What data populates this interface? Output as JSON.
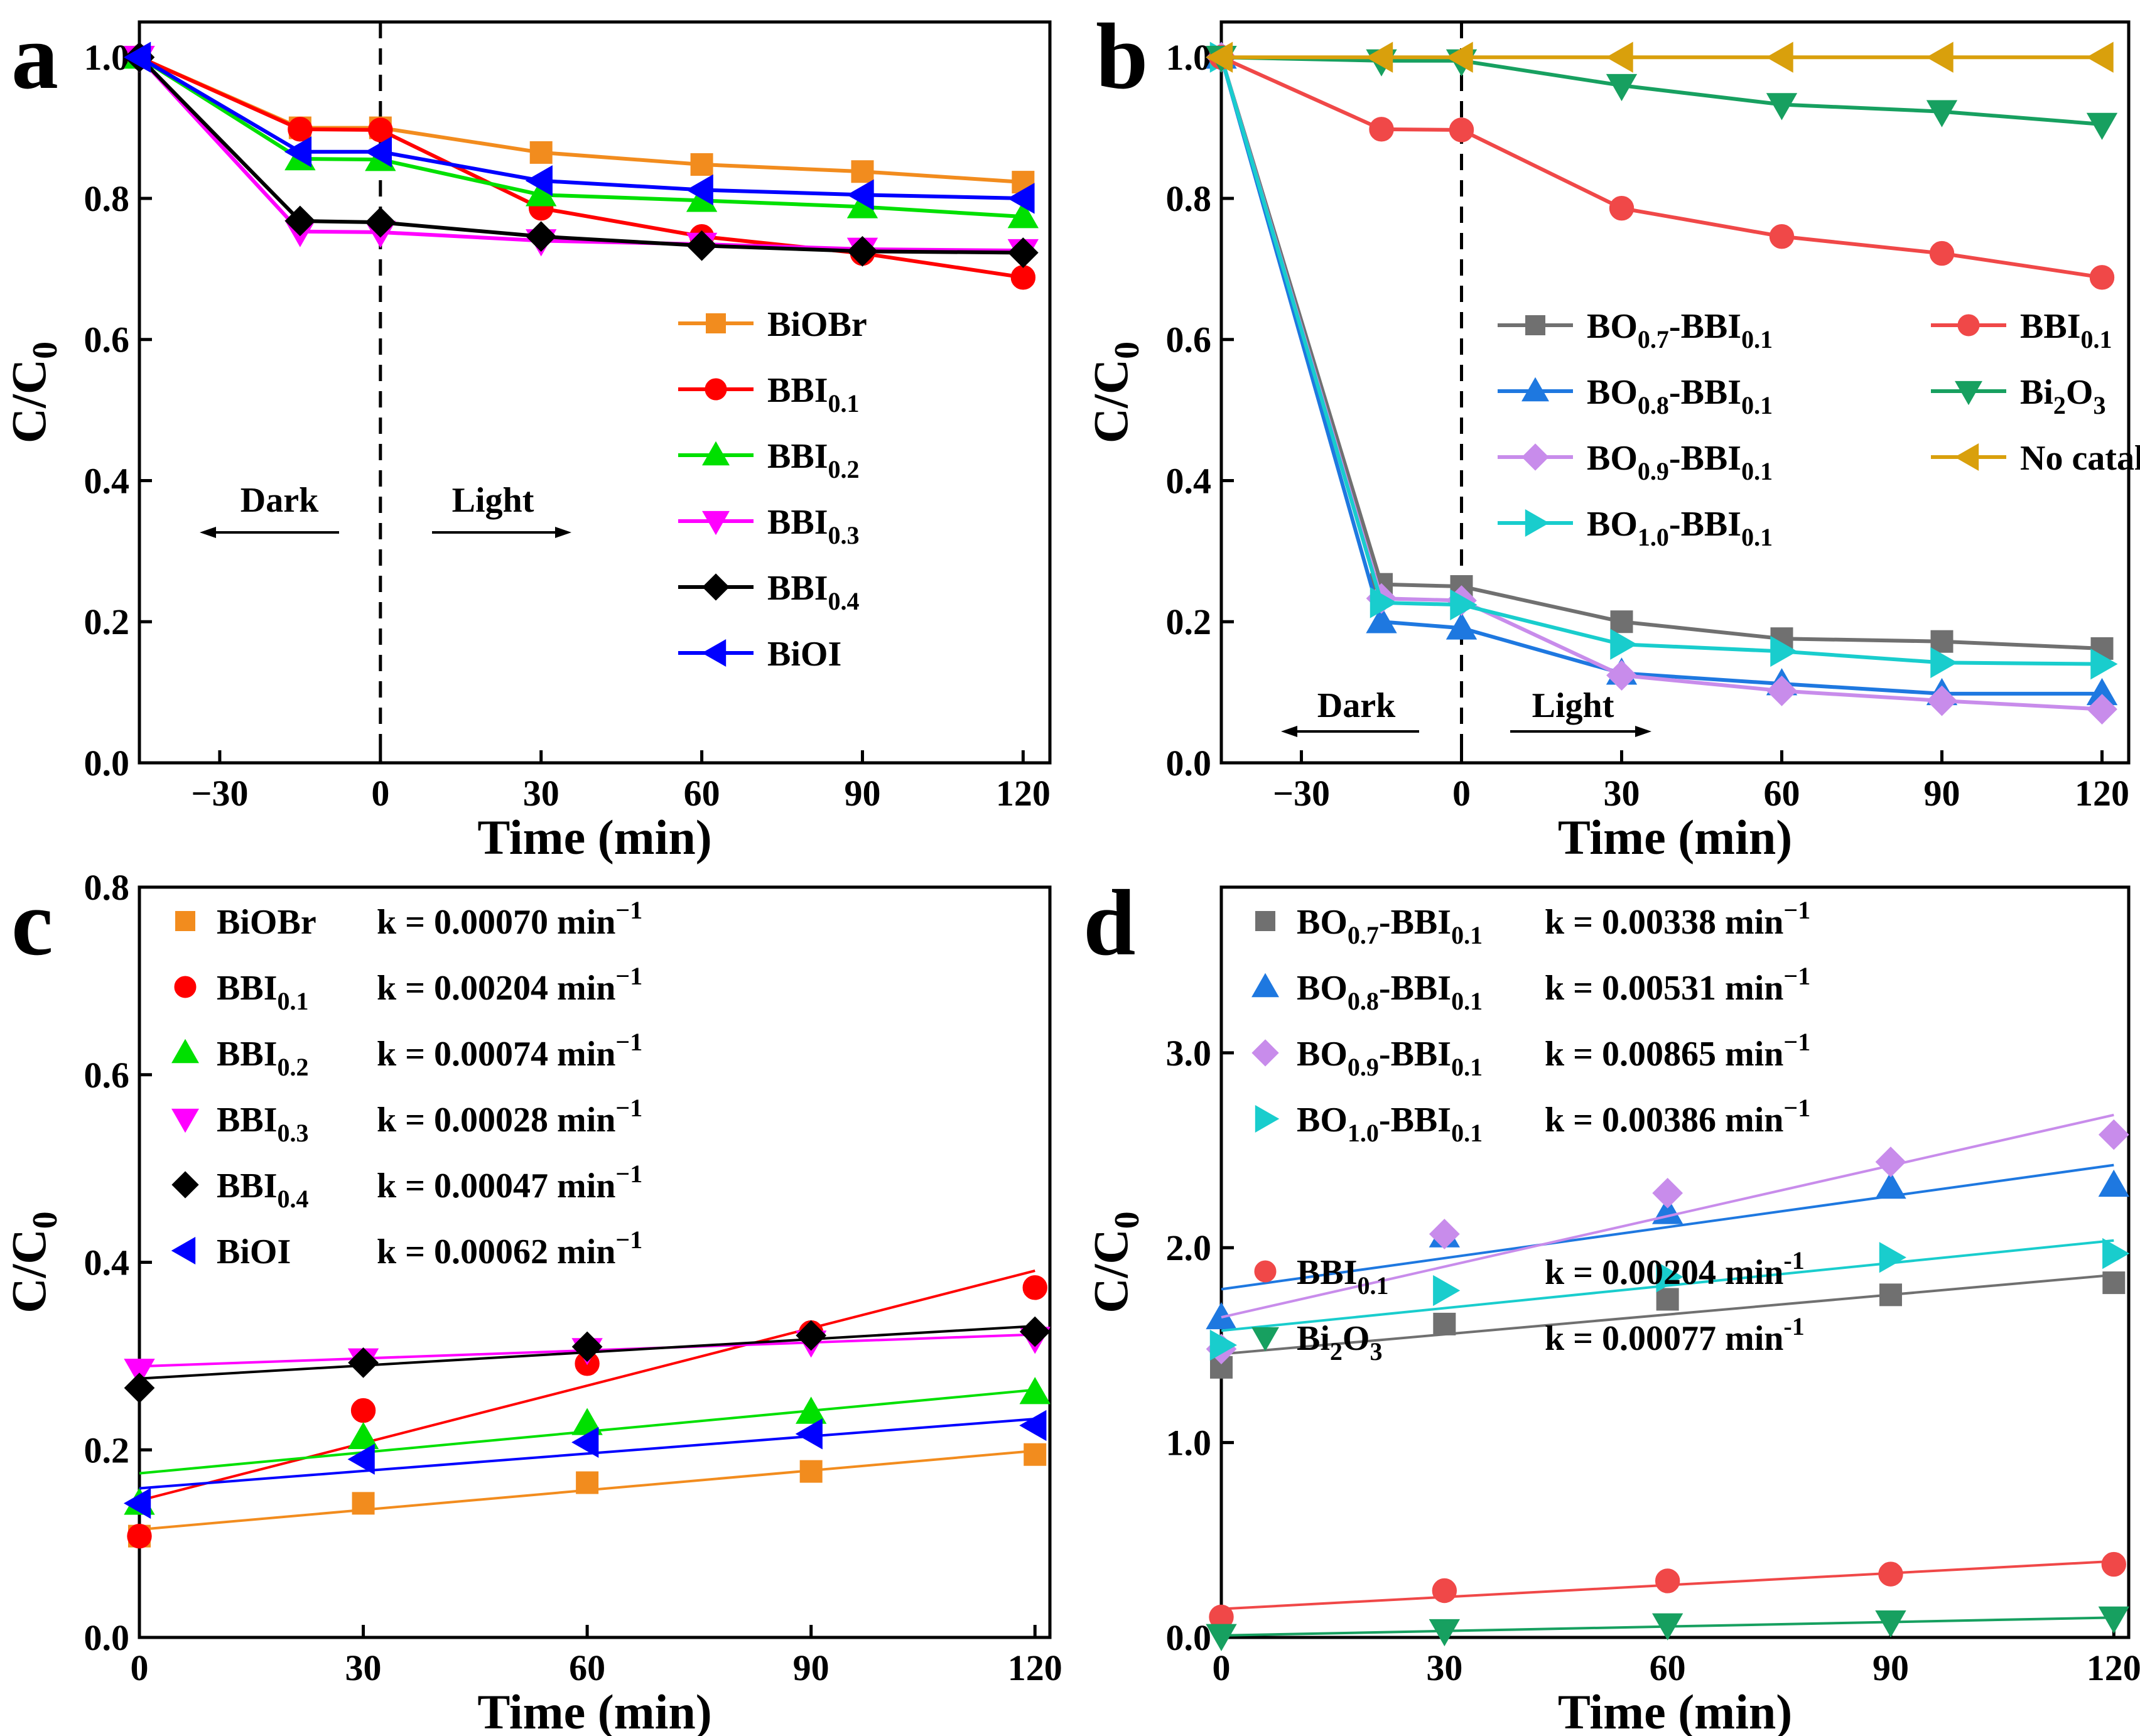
{
  "chart_data": [
    {
      "panel": "a",
      "type": "line",
      "title": "",
      "xlabel": "Time (min)",
      "ylabel": "C/C0",
      "xlim": [
        -45,
        125
      ],
      "ylim": [
        0,
        1.05
      ],
      "xticks": [
        -30,
        0,
        30,
        60,
        90,
        120
      ],
      "yticks": [
        0.0,
        0.2,
        0.4,
        0.6,
        0.8,
        1.0
      ],
      "legend_position": "center-right",
      "annotations": {
        "dark": "Dark",
        "light": "Light"
      },
      "x": [
        -45,
        -15,
        0,
        30,
        60,
        90,
        120
      ],
      "series": [
        {
          "name": "BiOBr",
          "base": "BiOBr",
          "sub": "",
          "color": "#F28C1E",
          "marker": "square",
          "values": [
            1.0,
            0.9,
            0.9,
            0.865,
            0.848,
            0.838,
            0.823
          ]
        },
        {
          "name": "BBI0.1",
          "base": "BBI",
          "sub": "0.1",
          "color": "#FF0000",
          "marker": "circle",
          "values": [
            1.0,
            0.898,
            0.897,
            0.786,
            0.746,
            0.722,
            0.688
          ]
        },
        {
          "name": "BBI0.2",
          "base": "BBI",
          "sub": "0.2",
          "color": "#00E000",
          "marker": "triangle-up",
          "values": [
            1.0,
            0.856,
            0.855,
            0.805,
            0.797,
            0.788,
            0.774
          ]
        },
        {
          "name": "BBI0.3",
          "base": "BBI",
          "sub": "0.3",
          "color": "#FF00FF",
          "marker": "triangle-down",
          "values": [
            1.0,
            0.753,
            0.752,
            0.74,
            0.735,
            0.728,
            0.726
          ]
        },
        {
          "name": "BBI0.4",
          "base": "BBI",
          "sub": "0.4",
          "color": "#000000",
          "marker": "diamond",
          "values": [
            1.0,
            0.768,
            0.766,
            0.746,
            0.733,
            0.725,
            0.723
          ]
        },
        {
          "name": "BiOI",
          "base": "BiOI",
          "sub": "",
          "color": "#0000FF",
          "marker": "triangle-left",
          "values": [
            1.0,
            0.866,
            0.866,
            0.825,
            0.812,
            0.805,
            0.8
          ]
        }
      ]
    },
    {
      "panel": "b",
      "type": "line",
      "title": "",
      "xlabel": "Time (min)",
      "ylabel": "C/C0",
      "xlim": [
        -45,
        125
      ],
      "ylim": [
        0,
        1.05
      ],
      "xticks": [
        -30,
        0,
        30,
        60,
        90,
        120
      ],
      "yticks": [
        0.0,
        0.2,
        0.4,
        0.6,
        0.8,
        1.0
      ],
      "legend_position": "center-right",
      "annotations": {
        "dark": "Dark",
        "light": "Light"
      },
      "x": [
        -45,
        -15,
        0,
        30,
        60,
        90,
        120
      ],
      "series": [
        {
          "name": "BO0.7-BBI0.1",
          "base": "BO",
          "sub": "0.7",
          "mid": "-BBI",
          "sub2": "0.1",
          "color": "#707070",
          "marker": "square",
          "values": [
            1.0,
            0.253,
            0.25,
            0.2,
            0.176,
            0.172,
            0.162
          ]
        },
        {
          "name": "BO0.8-BBI0.1",
          "base": "BO",
          "sub": "0.8",
          "mid": "-BBI",
          "sub2": "0.1",
          "color": "#1E78E0",
          "marker": "triangle-up",
          "values": [
            1.0,
            0.2,
            0.191,
            0.127,
            0.112,
            0.098,
            0.098
          ]
        },
        {
          "name": "BO0.9-BBI0.1",
          "base": "BO",
          "sub": "0.9",
          "mid": "-BBI",
          "sub2": "0.1",
          "color": "#C88CEB",
          "marker": "diamond",
          "values": [
            1.0,
            0.233,
            0.23,
            0.124,
            0.102,
            0.088,
            0.076
          ]
        },
        {
          "name": "BO1.0-BBI0.1",
          "base": "BO",
          "sub": "1.0",
          "mid": "-BBI",
          "sub2": "0.1",
          "color": "#19CDCD",
          "marker": "triangle-right",
          "values": [
            1.0,
            0.227,
            0.224,
            0.168,
            0.158,
            0.142,
            0.14
          ]
        },
        {
          "name": "BBI0.1",
          "base": "BBI",
          "sub": "0.1",
          "color": "#F04848",
          "marker": "circle",
          "values": [
            1.0,
            0.898,
            0.897,
            0.786,
            0.746,
            0.722,
            0.688
          ]
        },
        {
          "name": "Bi2O3",
          "base": "Bi",
          "sub": "2",
          "mid": "O",
          "sub2": "3",
          "color": "#17A060",
          "marker": "triangle-down",
          "values": [
            1.0,
            0.995,
            0.995,
            0.96,
            0.933,
            0.923,
            0.905
          ]
        },
        {
          "name": "No catalyst",
          "base": "No catalyst",
          "sub": "",
          "color": "#D9A00C",
          "marker": "triangle-left",
          "values": [
            1.0,
            1.0,
            1.0,
            1.0,
            1.0,
            1.0,
            1.0
          ]
        }
      ]
    },
    {
      "panel": "c",
      "type": "scatter",
      "title": "",
      "xlabel": "Time (min)",
      "ylabel": "C/C0",
      "xlim": [
        0,
        122
      ],
      "ylim": [
        0,
        0.8
      ],
      "xticks": [
        0,
        30,
        60,
        90,
        120
      ],
      "yticks": [
        0.0,
        0.2,
        0.4,
        0.6,
        0.8
      ],
      "legend_position": "top-left",
      "x": [
        0,
        30,
        60,
        90,
        120
      ],
      "series": [
        {
          "name": "BiOBr",
          "base": "BiOBr",
          "sub": "",
          "k": "k = 0.00070 min",
          "kexp": "−1",
          "color": "#F28C1E",
          "marker": "square",
          "values": [
            0.108,
            0.143,
            0.165,
            0.177,
            0.195
          ],
          "fit": [
            0.115,
            0.199
          ]
        },
        {
          "name": "BBI0.1",
          "base": "BBI",
          "sub": "0.1",
          "k": "k = 0.00204 min",
          "kexp": "−1",
          "color": "#FF0000",
          "marker": "circle",
          "values": [
            0.108,
            0.242,
            0.292,
            0.325,
            0.373
          ],
          "fit": [
            0.146,
            0.391
          ]
        },
        {
          "name": "BBI0.2",
          "base": "BBI",
          "sub": "0.2",
          "k": "k = 0.00074 min",
          "kexp": "−1",
          "color": "#00E000",
          "marker": "triangle-up",
          "values": [
            0.143,
            0.213,
            0.228,
            0.24,
            0.261
          ],
          "fit": [
            0.175,
            0.264
          ]
        },
        {
          "name": "BBI0.3",
          "base": "BBI",
          "sub": "0.3",
          "k": "k = 0.00028 min",
          "kexp": "−1",
          "color": "#FF00FF",
          "marker": "triangle-down",
          "values": [
            0.285,
            0.296,
            0.307,
            0.315,
            0.319
          ],
          "fit": [
            0.289,
            0.323
          ]
        },
        {
          "name": "BBI0.4",
          "base": "BBI",
          "sub": "0.4",
          "k": "k = 0.00047 min",
          "kexp": "−1",
          "color": "#000000",
          "marker": "diamond",
          "values": [
            0.266,
            0.293,
            0.31,
            0.322,
            0.326
          ],
          "fit": [
            0.276,
            0.332
          ]
        },
        {
          "name": "BiOI",
          "base": "BiOI",
          "sub": "",
          "k": "k = 0.00062 min",
          "kexp": "−1",
          "color": "#0000FF",
          "marker": "triangle-left",
          "values": [
            0.143,
            0.19,
            0.208,
            0.217,
            0.226
          ],
          "fit": [
            0.159,
            0.233
          ]
        }
      ]
    },
    {
      "panel": "d",
      "type": "scatter",
      "title": "",
      "xlabel": "Time (min)",
      "ylabel": "C/C0",
      "xlim": [
        0,
        122
      ],
      "ylim": [
        0,
        3.85
      ],
      "xticks": [
        0,
        30,
        60,
        90,
        120
      ],
      "yticks": [
        0.0,
        1.0,
        2.0,
        3.0
      ],
      "legend_position": "top-left",
      "x": [
        0,
        30,
        60,
        90,
        120
      ],
      "series": [
        {
          "name": "BO0.7-BBI0.1",
          "base": "BO",
          "sub": "0.7",
          "mid": "-BBI",
          "sub2": "0.1",
          "k": "k = 0.00338 min",
          "kexp": "−1",
          "color": "#707070",
          "marker": "square",
          "values": [
            1.386,
            1.608,
            1.735,
            1.758,
            1.82
          ],
          "fit": [
            1.454,
            1.86
          ]
        },
        {
          "name": "BO0.8-BBI0.1",
          "base": "BO",
          "sub": "0.8",
          "mid": "-BBI",
          "sub2": "0.1",
          "k": "k = 0.00531 min",
          "kexp": "−1",
          "color": "#1E78E0",
          "marker": "triangle-up",
          "values": [
            1.64,
            2.06,
            2.18,
            2.31,
            2.32
          ],
          "fit": [
            1.787,
            2.424
          ]
        },
        {
          "name": "BO0.9-BBI0.1",
          "base": "BO",
          "sub": "0.9",
          "mid": "-BBI",
          "sub2": "0.1",
          "k": "k = 0.00865 min",
          "kexp": "−1",
          "color": "#C88CEB",
          "marker": "diamond",
          "values": [
            1.48,
            2.07,
            2.28,
            2.44,
            2.58
          ],
          "fit": [
            1.643,
            2.681
          ]
        },
        {
          "name": "BO1.0-BBI0.1",
          "base": "BO",
          "sub": "1.0",
          "mid": "-BBI",
          "sub2": "0.1",
          "k": "k = 0.00386 min",
          "kexp": "−1",
          "color": "#19CDCD",
          "marker": "triangle-right",
          "values": [
            1.5,
            1.78,
            1.85,
            1.95,
            1.97
          ],
          "fit": [
            1.574,
            2.037
          ]
        },
        {
          "name": "BBI0.1",
          "base": "BBI",
          "sub": "0.1",
          "k": "k = 0.00204 min",
          "kexp": "-1",
          "color": "#F04848",
          "marker": "circle",
          "values": [
            0.105,
            0.24,
            0.29,
            0.325,
            0.375
          ],
          "fit": [
            0.146,
            0.391
          ]
        },
        {
          "name": "Bi2O3",
          "base": "Bi",
          "sub": "2",
          "mid": "O",
          "sub2": "3",
          "k": "k = 0.00077 min",
          "kexp": "-1",
          "color": "#17A060",
          "marker": "triangle-down",
          "values": [
            0.01,
            0.035,
            0.065,
            0.08,
            0.1
          ],
          "fit": [
            0.01,
            0.102
          ]
        }
      ]
    }
  ],
  "labels": {
    "panel_a": "a",
    "panel_b": "b",
    "panel_c": "c",
    "panel_d": "d"
  }
}
